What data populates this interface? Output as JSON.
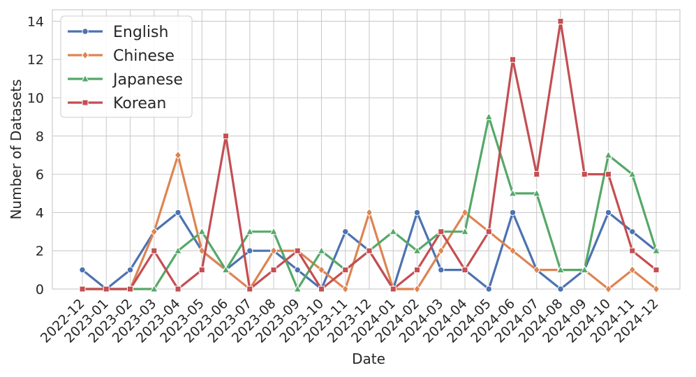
{
  "chart_data": {
    "type": "line",
    "xlabel": "Date",
    "ylabel": "Number of Datasets",
    "ylim": [
      0,
      14.6
    ],
    "yticks": [
      0,
      2,
      4,
      6,
      8,
      10,
      12,
      14
    ],
    "grid": true,
    "legend_position": "top-left",
    "x": [
      "2022-12",
      "2023-01",
      "2023-02",
      "2023-03",
      "2023-04",
      "2023-05",
      "2023-06",
      "2023-07",
      "2023-08",
      "2023-09",
      "2023-10",
      "2023-11",
      "2023-12",
      "2024-01",
      "2024-02",
      "2024-03",
      "2024-04",
      "2024-05",
      "2024-06",
      "2024-07",
      "2024-08",
      "2024-09",
      "2024-10",
      "2024-11",
      "2024-12"
    ],
    "series": [
      {
        "name": "English",
        "color": "#4c72b0",
        "marker": "circle",
        "values": [
          1,
          0,
          1,
          3,
          4,
          2,
          1,
          2,
          2,
          1,
          0,
          3,
          2,
          0,
          4,
          1,
          1,
          0,
          4,
          1,
          0,
          1,
          4,
          3,
          2
        ]
      },
      {
        "name": "Chinese",
        "color": "#dd8452",
        "marker": "diamond",
        "values": [
          0,
          0,
          0,
          3,
          7,
          2,
          1,
          0,
          2,
          2,
          1,
          0,
          4,
          0,
          0,
          2,
          4,
          3,
          2,
          1,
          1,
          1,
          0,
          1,
          0
        ]
      },
      {
        "name": "Japanese",
        "color": "#55a868",
        "marker": "triangle",
        "values": [
          0,
          0,
          0,
          0,
          2,
          3,
          1,
          3,
          3,
          0,
          2,
          1,
          2,
          3,
          2,
          3,
          3,
          9,
          5,
          5,
          1,
          1,
          7,
          6,
          2
        ]
      },
      {
        "name": "Korean",
        "color": "#c44e52",
        "marker": "square",
        "values": [
          0,
          0,
          0,
          2,
          0,
          1,
          8,
          0,
          1,
          2,
          0,
          1,
          2,
          0,
          1,
          3,
          1,
          3,
          12,
          6,
          14,
          6,
          6,
          2,
          1
        ]
      }
    ]
  }
}
